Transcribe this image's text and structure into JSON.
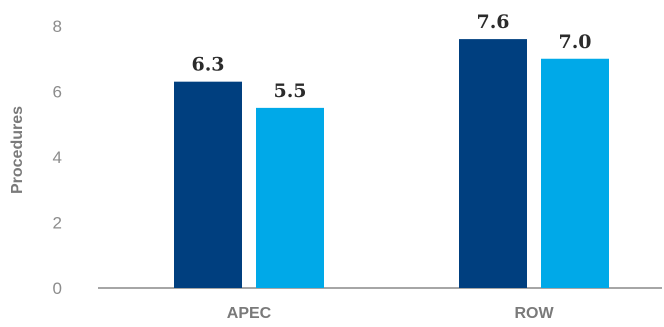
{
  "chart_data": {
    "type": "bar",
    "categories": [
      "APEC",
      "ROW"
    ],
    "series": [
      {
        "values": [
          6.3,
          7.6
        ],
        "color": "#003f7f",
        "labels": [
          "6.3",
          "7.6"
        ]
      },
      {
        "values": [
          5.5,
          7.0
        ],
        "color": "#00a9e8",
        "labels": [
          "5.5",
          "7.0"
        ]
      }
    ],
    "ylabel": "Procedures",
    "xlabel": "",
    "ylim": [
      0,
      8
    ],
    "yticks": [
      "0",
      "2",
      "4",
      "6",
      "8"
    ],
    "grid": false,
    "axis_color": "#a6a6a6"
  }
}
